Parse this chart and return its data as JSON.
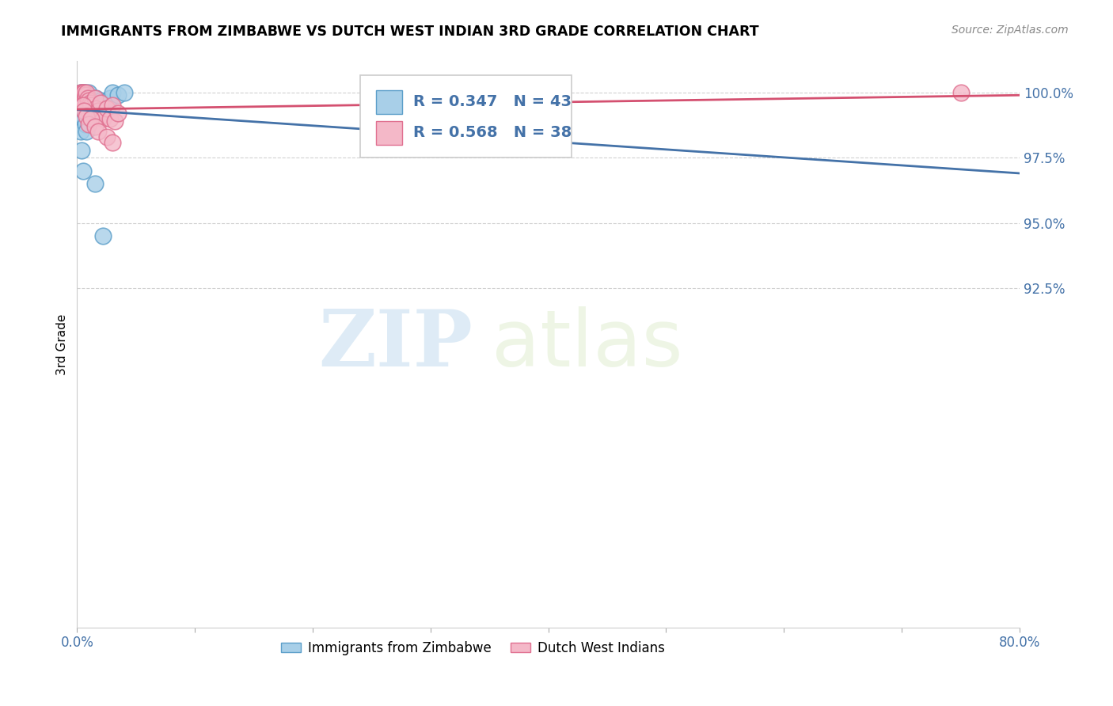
{
  "title": "IMMIGRANTS FROM ZIMBABWE VS DUTCH WEST INDIAN 3RD GRADE CORRELATION CHART",
  "source": "Source: ZipAtlas.com",
  "ylabel": "3rd Grade",
  "xlim": [
    0.0,
    80.0
  ],
  "ylim": [
    79.5,
    101.2
  ],
  "ytick_vals": [
    92.5,
    95.0,
    97.5,
    100.0
  ],
  "legend_label1": "Immigrants from Zimbabwe",
  "legend_label2": "Dutch West Indians",
  "r1": 0.347,
  "n1": 43,
  "r2": 0.568,
  "n2": 38,
  "color_blue_fill": "#a8cfe8",
  "color_blue_edge": "#5b9ec9",
  "color_blue_line": "#4472a8",
  "color_pink_fill": "#f4b8c8",
  "color_pink_edge": "#e07090",
  "color_pink_line": "#d45070",
  "watermark_zip": "ZIP",
  "watermark_atlas": "atlas",
  "blue_x": [
    0.2,
    0.3,
    0.3,
    0.4,
    0.4,
    0.4,
    0.4,
    0.5,
    0.5,
    0.5,
    0.5,
    0.6,
    0.6,
    0.7,
    0.7,
    0.8,
    0.8,
    0.9,
    1.0,
    1.0,
    1.1,
    1.2,
    1.3,
    1.4,
    1.5,
    1.6,
    1.7,
    1.8,
    2.0,
    2.2,
    2.5,
    2.8,
    3.0,
    3.5,
    4.0,
    0.3,
    0.4,
    0.5,
    0.6,
    0.7,
    0.8,
    1.5,
    2.2
  ],
  "blue_y": [
    99.9,
    100.0,
    99.8,
    100.0,
    99.9,
    99.7,
    99.5,
    100.0,
    99.8,
    99.6,
    99.4,
    100.0,
    99.7,
    100.0,
    99.6,
    99.9,
    99.5,
    99.3,
    100.0,
    99.7,
    99.5,
    99.3,
    99.8,
    99.6,
    99.4,
    99.8,
    99.5,
    99.2,
    99.7,
    99.5,
    99.3,
    99.8,
    100.0,
    99.9,
    100.0,
    98.5,
    97.8,
    97.0,
    99.0,
    98.8,
    98.5,
    96.5,
    94.5
  ],
  "pink_x": [
    0.3,
    0.4,
    0.4,
    0.5,
    0.5,
    0.6,
    0.6,
    0.7,
    0.7,
    0.8,
    0.8,
    0.9,
    1.0,
    1.0,
    1.1,
    1.2,
    1.3,
    1.5,
    1.6,
    1.8,
    2.0,
    2.0,
    2.2,
    2.5,
    2.8,
    3.0,
    3.2,
    3.5,
    0.5,
    0.6,
    0.8,
    1.0,
    1.2,
    1.5,
    1.8,
    2.5,
    3.0,
    75.0
  ],
  "pink_y": [
    100.0,
    100.0,
    99.8,
    100.0,
    99.7,
    100.0,
    99.6,
    99.9,
    99.5,
    100.0,
    99.4,
    99.8,
    99.7,
    99.3,
    99.6,
    99.5,
    99.2,
    99.8,
    99.4,
    99.3,
    99.6,
    99.1,
    99.0,
    99.4,
    99.0,
    99.5,
    98.9,
    99.2,
    99.5,
    99.3,
    99.1,
    98.8,
    99.0,
    98.7,
    98.5,
    98.3,
    98.1,
    100.0
  ]
}
